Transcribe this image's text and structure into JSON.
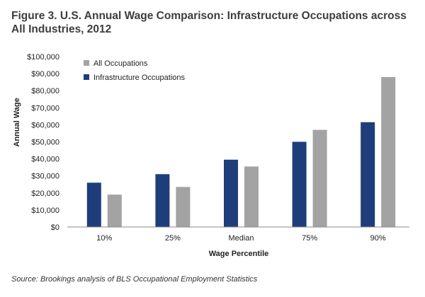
{
  "chart_data": {
    "type": "bar",
    "title": "Figure 3. U.S. Annual Wage Comparison: Infrastructure Occupations across All Industries, 2012",
    "xlabel": "Wage Percentile",
    "ylabel": "Annual Wage",
    "categories": [
      "10%",
      "25%",
      "Median",
      "75%",
      "90%"
    ],
    "series": [
      {
        "name": "Infrastructure Occupations",
        "color": "#1f3d7a",
        "values": [
          26000,
          31000,
          39500,
          50000,
          61500
        ]
      },
      {
        "name": "All Occupations",
        "color": "#a3a3a3",
        "values": [
          19000,
          23500,
          35500,
          57000,
          88000
        ]
      }
    ],
    "ylim": [
      0,
      100000
    ],
    "yticks": [
      "$0",
      "$10,000",
      "$20,000",
      "$30,000",
      "$40,000",
      "$50,000",
      "$60,000",
      "$70,000",
      "$80,000",
      "$90,000",
      "$100,000"
    ],
    "legend_order": [
      "All Occupations",
      "Infrastructure Occupations"
    ],
    "legend_position": "top-left",
    "grid": false
  },
  "source": "Source: Brookings analysis of BLS Occupational Employment Statistics"
}
